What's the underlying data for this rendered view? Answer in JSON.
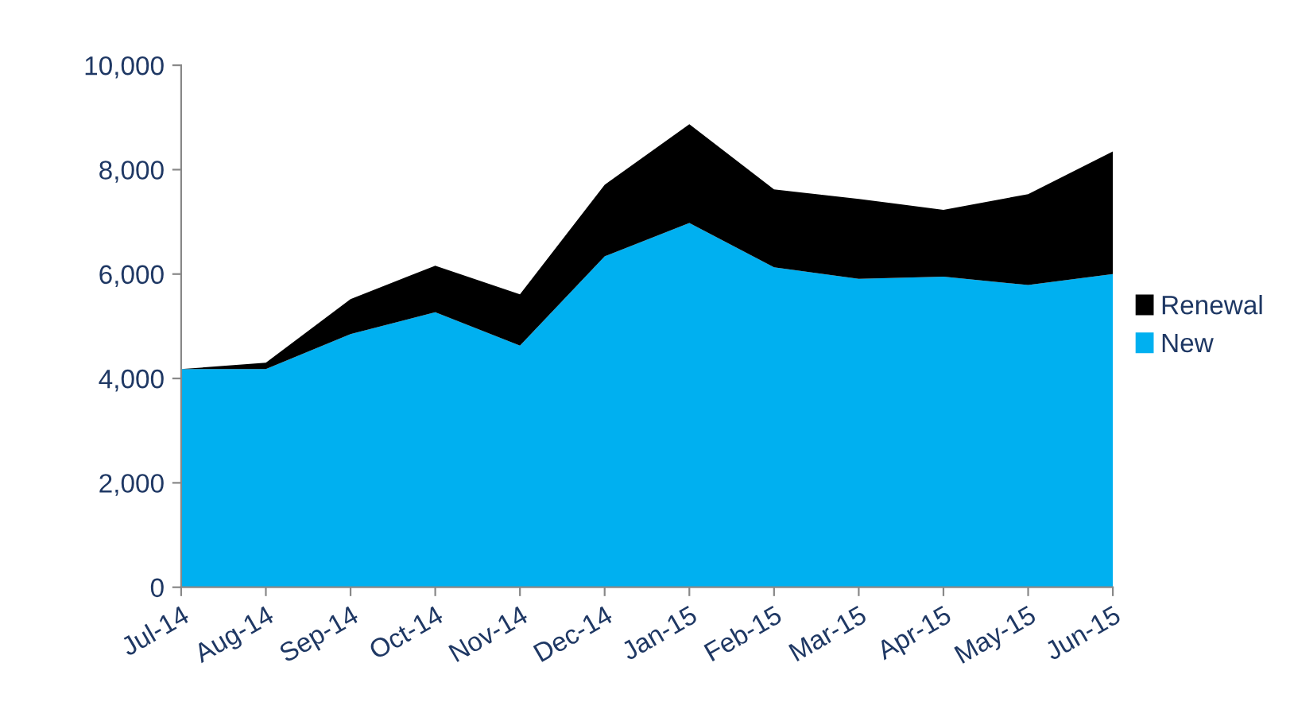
{
  "chart_data": {
    "type": "area",
    "stacked": true,
    "categories": [
      "Jul-14",
      "Aug-14",
      "Sep-14",
      "Oct-14",
      "Nov-14",
      "Dec-14",
      "Jan-15",
      "Feb-15",
      "Mar-15",
      "Apr-15",
      "May-15",
      "Jun-15"
    ],
    "series": [
      {
        "name": "New",
        "color": "#00b0f0",
        "values": [
          4180,
          4180,
          4850,
          5270,
          4630,
          6340,
          6980,
          6130,
          5910,
          5950,
          5790,
          6000
        ]
      },
      {
        "name": "Renewal",
        "color": "#000000",
        "values": [
          0,
          120,
          670,
          890,
          980,
          1370,
          1890,
          1490,
          1530,
          1280,
          1740,
          2350
        ]
      }
    ],
    "ylim": [
      0,
      10000
    ],
    "yticks": [
      {
        "value": 0,
        "label": "0"
      },
      {
        "value": 2000,
        "label": "2,000"
      },
      {
        "value": 4000,
        "label": "4,000"
      },
      {
        "value": 6000,
        "label": "6,000"
      },
      {
        "value": 8000,
        "label": "8,000"
      },
      {
        "value": 10000,
        "label": "10,000"
      }
    ],
    "grid": false,
    "legend": "right"
  }
}
